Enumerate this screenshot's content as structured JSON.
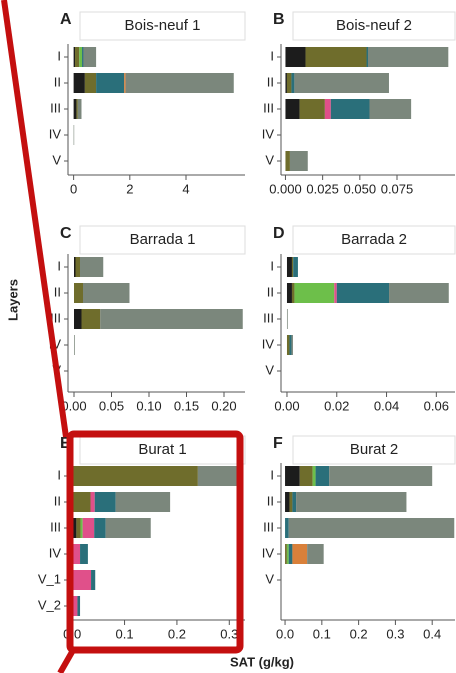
{
  "figure": {
    "ylabel": "Layers",
    "xlabel": "SAT (g/kg)"
  },
  "chart_data": [
    {
      "type": "bar",
      "orientation": "horizontal",
      "stacked": true,
      "letter": "A",
      "title": "Bois-neuf 1",
      "categories": [
        "I",
        "II",
        "III",
        "IV",
        "V"
      ],
      "series": [
        {
          "color": "#1c1c1c",
          "values": [
            0.05,
            0.4,
            0.1,
            0,
            0
          ]
        },
        {
          "color": "#6f6d2c",
          "values": [
            0.15,
            0.4,
            0.05,
            0,
            0
          ]
        },
        {
          "color": "#6dbf4a",
          "values": [
            0.1,
            0,
            0,
            0,
            0
          ]
        },
        {
          "color": "#2a6f7a",
          "values": [
            0.05,
            1.0,
            0,
            0,
            0
          ]
        },
        {
          "color": "#d9803a",
          "values": [
            0,
            0.05,
            0,
            0,
            0
          ]
        },
        {
          "color": "#7b877c",
          "values": [
            0.45,
            3.85,
            0.13,
            0.02,
            0
          ]
        }
      ],
      "xlim": [
        -0.2,
        6.1
      ],
      "xticks": [
        0,
        2,
        4
      ]
    },
    {
      "type": "bar",
      "orientation": "horizontal",
      "stacked": true,
      "letter": "B",
      "title": "Bois-neuf 2",
      "categories": [
        "I",
        "II",
        "III",
        "IV",
        "V"
      ],
      "series": [
        {
          "color": "#1c1c1c",
          "values": [
            0.0135,
            0.001,
            0.0095,
            0,
            0
          ]
        },
        {
          "color": "#6f6d2c",
          "values": [
            0.041,
            0.003,
            0.017,
            0,
            0.003
          ]
        },
        {
          "color": "#e0508a",
          "values": [
            0,
            0,
            0.004,
            0,
            0
          ]
        },
        {
          "color": "#2a6f7a",
          "values": [
            0.001,
            0.002,
            0.026,
            0,
            0
          ]
        },
        {
          "color": "#7b877c",
          "values": [
            0.054,
            0.0636,
            0.028,
            0,
            0.012
          ]
        }
      ],
      "xlim": [
        -0.003,
        0.114
      ],
      "xticks": [
        {
          "value": 0,
          "label": "0.000"
        },
        0.025,
        {
          "value": 0.05,
          "label": "0.050"
        },
        0.075
      ]
    },
    {
      "type": "bar",
      "orientation": "horizontal",
      "stacked": true,
      "letter": "C",
      "title": "Barrada 1",
      "categories": [
        "I",
        "II",
        "III",
        "IV",
        "V"
      ],
      "series": [
        {
          "color": "#1c1c1c",
          "values": [
            0.002,
            0,
            0.01,
            0,
            0
          ]
        },
        {
          "color": "#6f6d2c",
          "values": [
            0.006,
            0.012,
            0.025,
            0,
            0
          ]
        },
        {
          "color": "#7b877c",
          "values": [
            0.031,
            0.062,
            0.19,
            0.001,
            0
          ]
        }
      ],
      "xlim": [
        -0.008,
        0.228
      ],
      "xticks": [
        {
          "value": 0,
          "label": "0.00"
        },
        0.05,
        {
          "value": 0.1,
          "label": "0.10"
        },
        0.15,
        {
          "value": 0.2,
          "label": "0.20"
        }
      ]
    },
    {
      "type": "bar",
      "orientation": "horizontal",
      "stacked": true,
      "letter": "D",
      "title": "Barrada 2",
      "categories": [
        "I",
        "II",
        "III",
        "IV",
        "V"
      ],
      "series": [
        {
          "color": "#1c1c1c",
          "values": [
            0.002,
            0.002,
            0,
            0,
            0
          ]
        },
        {
          "color": "#6f6d2c",
          "values": [
            0.0005,
            0.001,
            0,
            0.001,
            0
          ]
        },
        {
          "color": "#6dbf4a",
          "values": [
            0,
            0.016,
            0,
            0,
            0
          ]
        },
        {
          "color": "#e0508a",
          "values": [
            0,
            0.001,
            0,
            0,
            0
          ]
        },
        {
          "color": "#2a6f7a",
          "values": [
            0.0019,
            0.021,
            0,
            0.0008,
            0
          ]
        },
        {
          "color": "#7b877c",
          "values": [
            0,
            0.024,
            0.0003,
            0.0006,
            0
          ]
        }
      ],
      "xlim": [
        -0.0024,
        0.0675
      ],
      "xticks": [
        {
          "value": 0,
          "label": "0.00"
        },
        0.02,
        0.04,
        0.06
      ]
    },
    {
      "type": "bar",
      "orientation": "horizontal",
      "stacked": true,
      "letter": "E",
      "title": "Burat 1",
      "categories": [
        "I",
        "II",
        "III",
        "IV",
        "V_1",
        "V_2"
      ],
      "series": [
        {
          "color": "#1c1c1c",
          "values": [
            0,
            0,
            0.008,
            0,
            0,
            0
          ]
        },
        {
          "color": "#6f6d2c",
          "values": [
            0.24,
            0.035,
            0.008,
            0,
            0,
            0
          ]
        },
        {
          "color": "#6dbf4a",
          "values": [
            0,
            0,
            0.004,
            0,
            0,
            0
          ]
        },
        {
          "color": "#e0508a",
          "values": [
            0,
            0.008,
            0.022,
            0.015,
            0.036,
            0.01
          ]
        },
        {
          "color": "#2a6f7a",
          "values": [
            0,
            0.04,
            0.022,
            0.015,
            0.008,
            0.005
          ]
        },
        {
          "color": "#7b877c",
          "values": [
            0.081,
            0.104,
            0.086,
            0,
            0,
            0
          ]
        }
      ],
      "xlim": [
        -0.008,
        0.33
      ],
      "xticks": [
        {
          "value": 0,
          "label": "0.0"
        },
        0.1,
        0.2,
        0.3
      ]
    },
    {
      "type": "bar",
      "orientation": "horizontal",
      "stacked": true,
      "letter": "F",
      "title": "Burat 2",
      "categories": [
        "I",
        "II",
        "III",
        "IV",
        "V"
      ],
      "series": [
        {
          "color": "#1c1c1c",
          "values": [
            0.04,
            0.012,
            0,
            0,
            0
          ]
        },
        {
          "color": "#6f6d2c",
          "values": [
            0.035,
            0.008,
            0,
            0.005,
            0
          ]
        },
        {
          "color": "#6dbf4a",
          "values": [
            0.008,
            0,
            0,
            0.005,
            0
          ]
        },
        {
          "color": "#2a6f7a",
          "values": [
            0.037,
            0.01,
            0.01,
            0.01,
            0
          ]
        },
        {
          "color": "#d9803a",
          "values": [
            0,
            0,
            0,
            0.04,
            0
          ]
        },
        {
          "color": "#7b877c",
          "values": [
            0.28,
            0.3,
            0.45,
            0.045,
            0
          ]
        }
      ],
      "xlim": [
        -0.011,
        0.462
      ],
      "xticks": [
        {
          "value": 0,
          "label": "0.0"
        },
        0.1,
        0.2,
        0.3,
        0.4
      ]
    }
  ]
}
